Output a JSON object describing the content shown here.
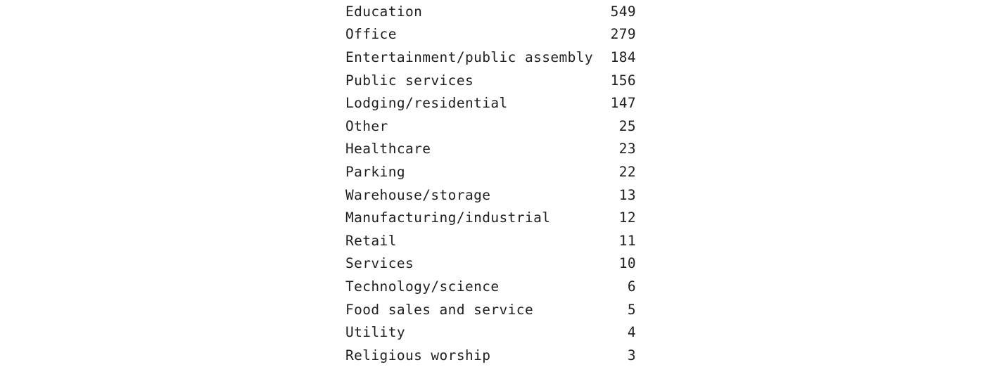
{
  "table": {
    "rows": [
      {
        "category": "Education",
        "count": "549"
      },
      {
        "category": "Office",
        "count": "279"
      },
      {
        "category": "Entertainment/public assembly",
        "count": "184"
      },
      {
        "category": "Public services",
        "count": "156"
      },
      {
        "category": "Lodging/residential",
        "count": "147"
      },
      {
        "category": "Other",
        "count": "25"
      },
      {
        "category": "Healthcare",
        "count": "23"
      },
      {
        "category": "Parking",
        "count": "22"
      },
      {
        "category": "Warehouse/storage",
        "count": "13"
      },
      {
        "category": "Manufacturing/industrial",
        "count": "12"
      },
      {
        "category": "Retail",
        "count": "11"
      },
      {
        "category": "Services",
        "count": "10"
      },
      {
        "category": "Technology/science",
        "count": "6"
      },
      {
        "category": "Food sales and service",
        "count": "5"
      },
      {
        "category": "Utility",
        "count": "4"
      },
      {
        "category": "Religious worship",
        "count": "3"
      }
    ]
  }
}
